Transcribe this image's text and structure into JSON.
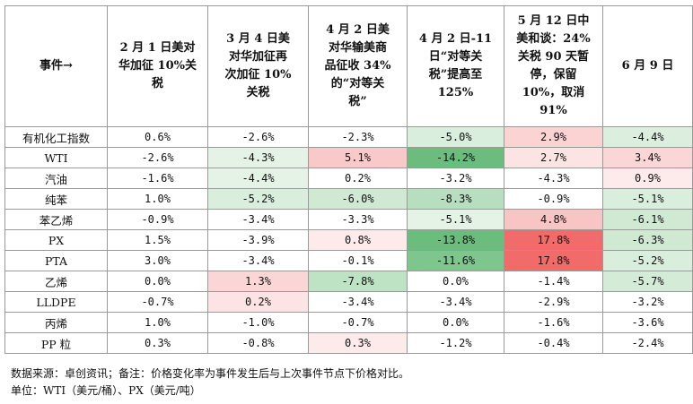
{
  "table": {
    "corner_label": "事件→",
    "headers": [
      "2 月 1 日美对\n华加征 10%关\n税",
      "3 月 4 日美\n对华加征再\n次加征 10%\n关税",
      "4 月 2 日美\n对华输美商\n品征收 34%\n的“对等关\n税”",
      "4 月 2 日-11\n日“对等关\n税”提高至\n125%",
      "5 月 12 日中\n美和谈：24%\n关税 90 天暂\n停，保留\n10%，取消\n91%",
      "6 月 9 日"
    ],
    "rows": [
      {
        "name": "有机化工指数",
        "values": [
          "0.6%",
          "-2.6%",
          "-2.3%",
          "-5.0%",
          "2.9%",
          "-4.4%"
        ],
        "colors": [
          "#ffffff",
          "#ffffff",
          "#ffffff",
          "#d9eedc",
          "#fbd3d3",
          "#dcefdf"
        ]
      },
      {
        "name": "WTI",
        "values": [
          "-2.6%",
          "-4.3%",
          "5.1%",
          "-14.2%",
          "2.7%",
          "3.4%"
        ],
        "colors": [
          "#ffffff",
          "#e4f3e6",
          "#f9c9c9",
          "#6cbd7d",
          "#fde4e4",
          "#fbd6d6"
        ]
      },
      {
        "name": "汽油",
        "values": [
          "-1.6%",
          "-4.4%",
          "0.2%",
          "-3.2%",
          "-4.3%",
          "0.9%"
        ],
        "colors": [
          "#ffffff",
          "#e4f3e6",
          "#ffffff",
          "#ffffff",
          "#ffffff",
          "#fdeaea"
        ]
      },
      {
        "name": "纯苯",
        "values": [
          "1.0%",
          "-5.2%",
          "-6.0%",
          "-8.3%",
          "-0.9%",
          "-5.1%"
        ],
        "colors": [
          "#ffffff",
          "#d9eedc",
          "#cfe9d3",
          "#b7dfbf",
          "#ffffff",
          "#d9eedc"
        ]
      },
      {
        "name": "苯乙烯",
        "values": [
          "-0.9%",
          "-3.4%",
          "-3.3%",
          "-5.1%",
          "4.8%",
          "-6.1%"
        ],
        "colors": [
          "#ffffff",
          "#ffffff",
          "#ffffff",
          "#e4f3e6",
          "#f9c4c4",
          "#cfe9d3"
        ]
      },
      {
        "name": "PX",
        "values": [
          "1.5%",
          "-3.9%",
          "0.8%",
          "-13.8%",
          "17.8%",
          "-6.3%"
        ],
        "colors": [
          "#ffffff",
          "#ffffff",
          "#fdeaea",
          "#6cbd7d",
          "#f26b6b",
          "#cfe9d3"
        ]
      },
      {
        "name": "PTA",
        "values": [
          "3.0%",
          "-3.4%",
          "-0.1%",
          "-11.6%",
          "17.8%",
          "-5.2%"
        ],
        "colors": [
          "#ffffff",
          "#ffffff",
          "#ffffff",
          "#7fc58e",
          "#f26b6b",
          "#d9eedc"
        ]
      },
      {
        "name": "乙烯",
        "values": [
          "0.0%",
          "1.3%",
          "-7.8%",
          "0.0%",
          "-1.4%",
          "-5.7%"
        ],
        "colors": [
          "#ffffff",
          "#fbd6d6",
          "#bde2c4",
          "#ffffff",
          "#ffffff",
          "#d3ebd7"
        ]
      },
      {
        "name": "LLDPE",
        "values": [
          "-0.7%",
          "0.2%",
          "-3.4%",
          "-3.4%",
          "-2.9%",
          "-3.2%"
        ],
        "colors": [
          "#ffffff",
          "#fde4e4",
          "#ffffff",
          "#ffffff",
          "#ffffff",
          "#ffffff"
        ]
      },
      {
        "name": "丙烯",
        "values": [
          "1.0%",
          "-1.0%",
          "-0.7%",
          "0.0%",
          "-1.6%",
          "-3.6%"
        ],
        "colors": [
          "#ffffff",
          "#ffffff",
          "#ffffff",
          "#ffffff",
          "#ffffff",
          "#ffffff"
        ]
      },
      {
        "name": "PP 粒",
        "values": [
          "0.3%",
          "-0.8%",
          "0.3%",
          "-1.2%",
          "-0.4%",
          "-2.4%"
        ],
        "colors": [
          "#ffffff",
          "#ffffff",
          "#fdeaea",
          "#ffffff",
          "#ffffff",
          "#ffffff"
        ]
      }
    ]
  },
  "notes": {
    "source": "数据来源：卓创资讯；备注：价格变化率为事件发生后与上次事件节点下价格对比。",
    "unit": "单位：WTI（美元/桶）、PX（美元/吨）"
  }
}
